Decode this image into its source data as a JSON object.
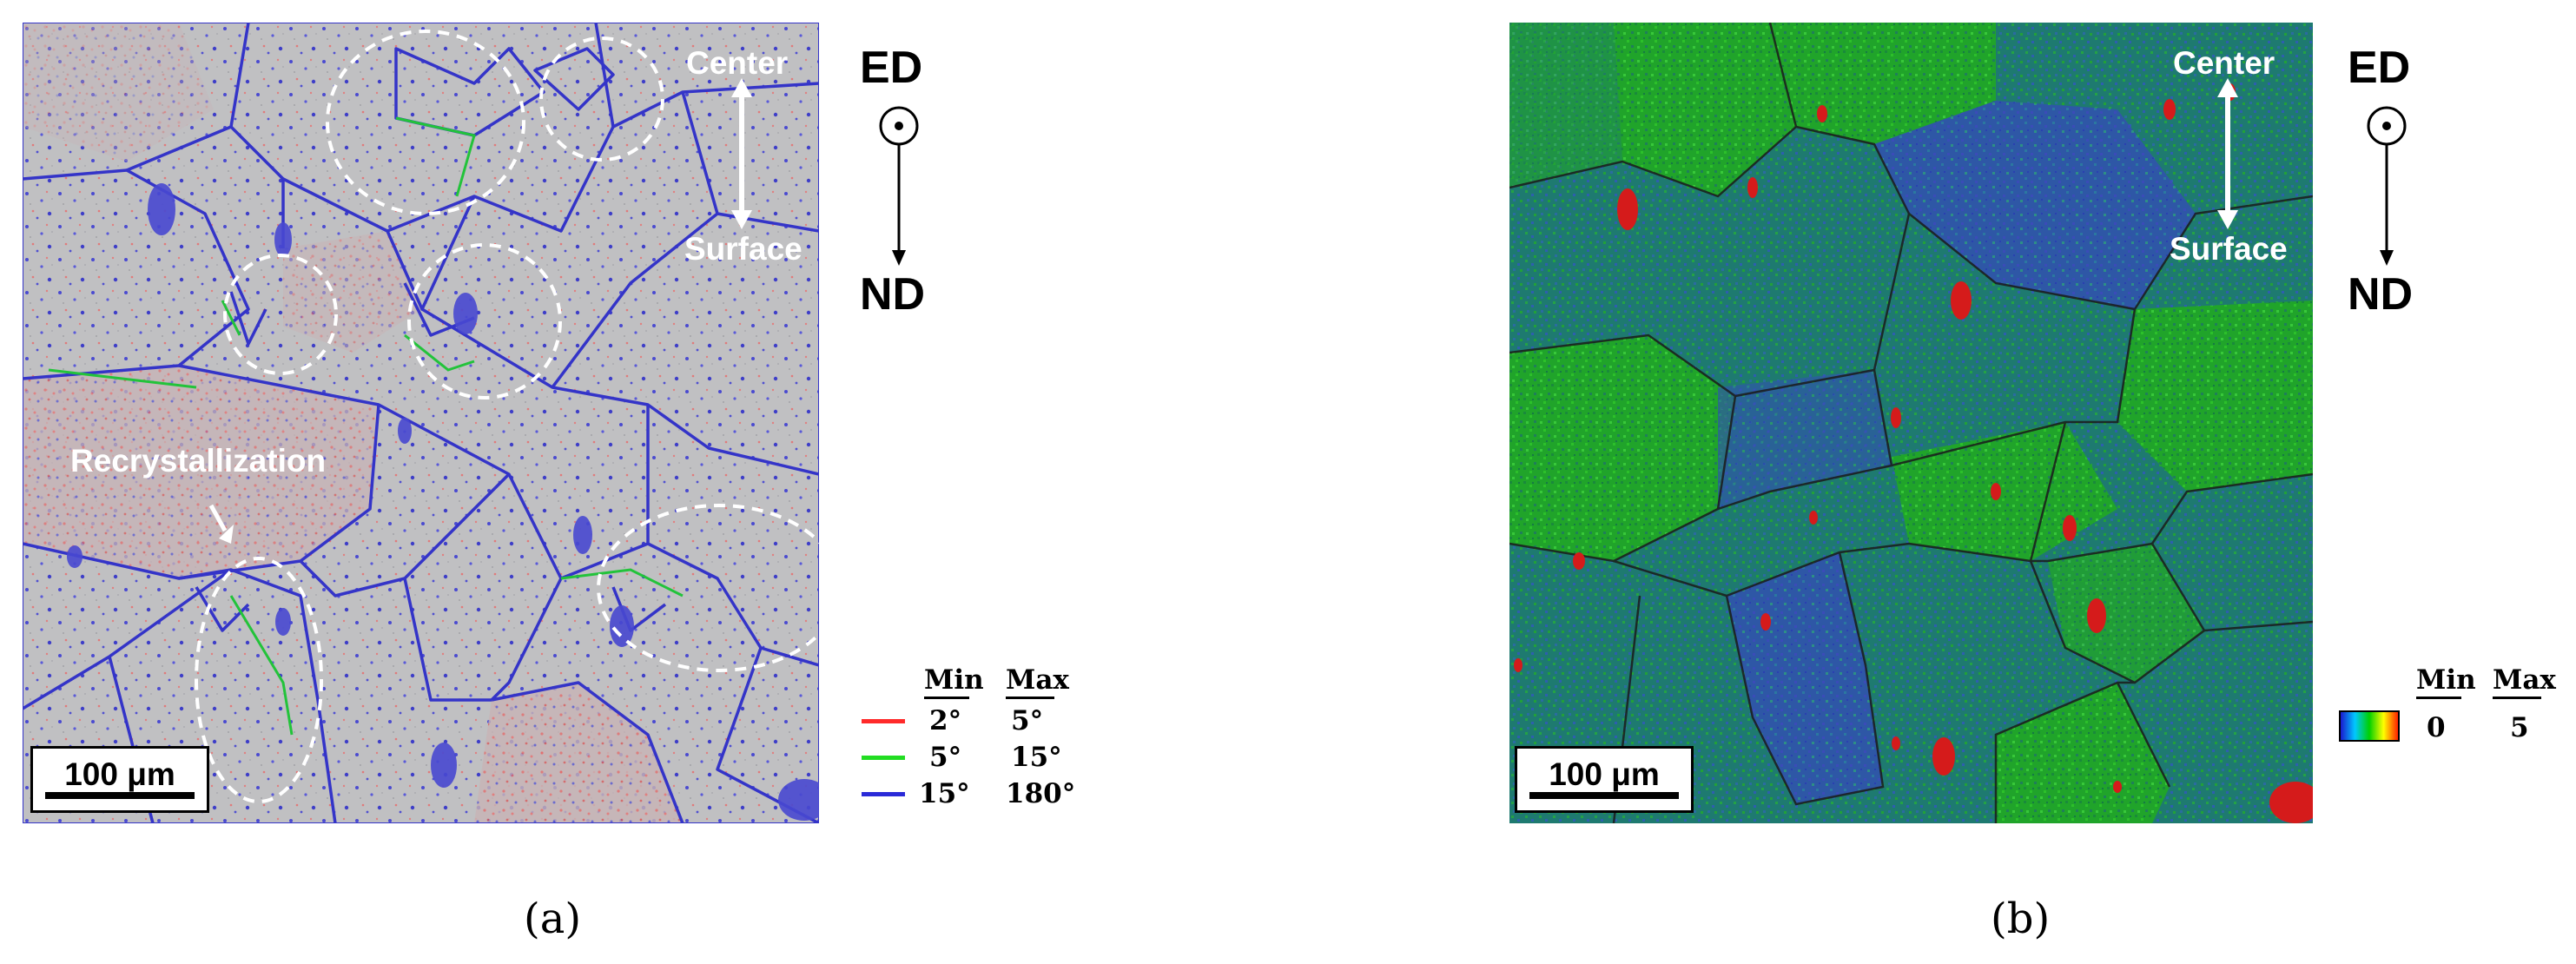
{
  "panel_a": {
    "caption": "(a)",
    "labels": {
      "center": "Center",
      "surface": "Surface",
      "recrystallization": "Recrystallization",
      "ed": "ED",
      "nd": "ND"
    },
    "scale_bar": "100 μm",
    "legend": {
      "header_min": "Min",
      "header_max": "Max",
      "rows": [
        {
          "min": "2°",
          "max": "5°",
          "color": "#ff2a2a"
        },
        {
          "min": "5°",
          "max": "15°",
          "color": "#22dd22"
        },
        {
          "min": "15°",
          "max": "180°",
          "color": "#2a2ad8"
        }
      ]
    },
    "colors": {
      "background": "#bdbdbd",
      "high_angle": "#3a3ad0",
      "mid_angle": "#22c33a",
      "low_angle": "#f07070"
    }
  },
  "panel_b": {
    "caption": "(b)",
    "labels": {
      "center": "Center",
      "surface": "Surface",
      "ed": "ED",
      "nd": "ND"
    },
    "scale_bar": "100 μm",
    "legend": {
      "header_min": "Min",
      "header_max": "Max",
      "min_value": "0",
      "max_value": "5",
      "gradient": [
        "#1a1ad0",
        "#00c8ff",
        "#00d000",
        "#ffff00",
        "#ff2000"
      ]
    },
    "colors": {
      "green_grain": "#20a828",
      "blue_grain": "#2d55a8",
      "mixed_grain": "#1f7e6a",
      "boundary": "#1c1c1c",
      "hotspot": "#d01818"
    }
  }
}
